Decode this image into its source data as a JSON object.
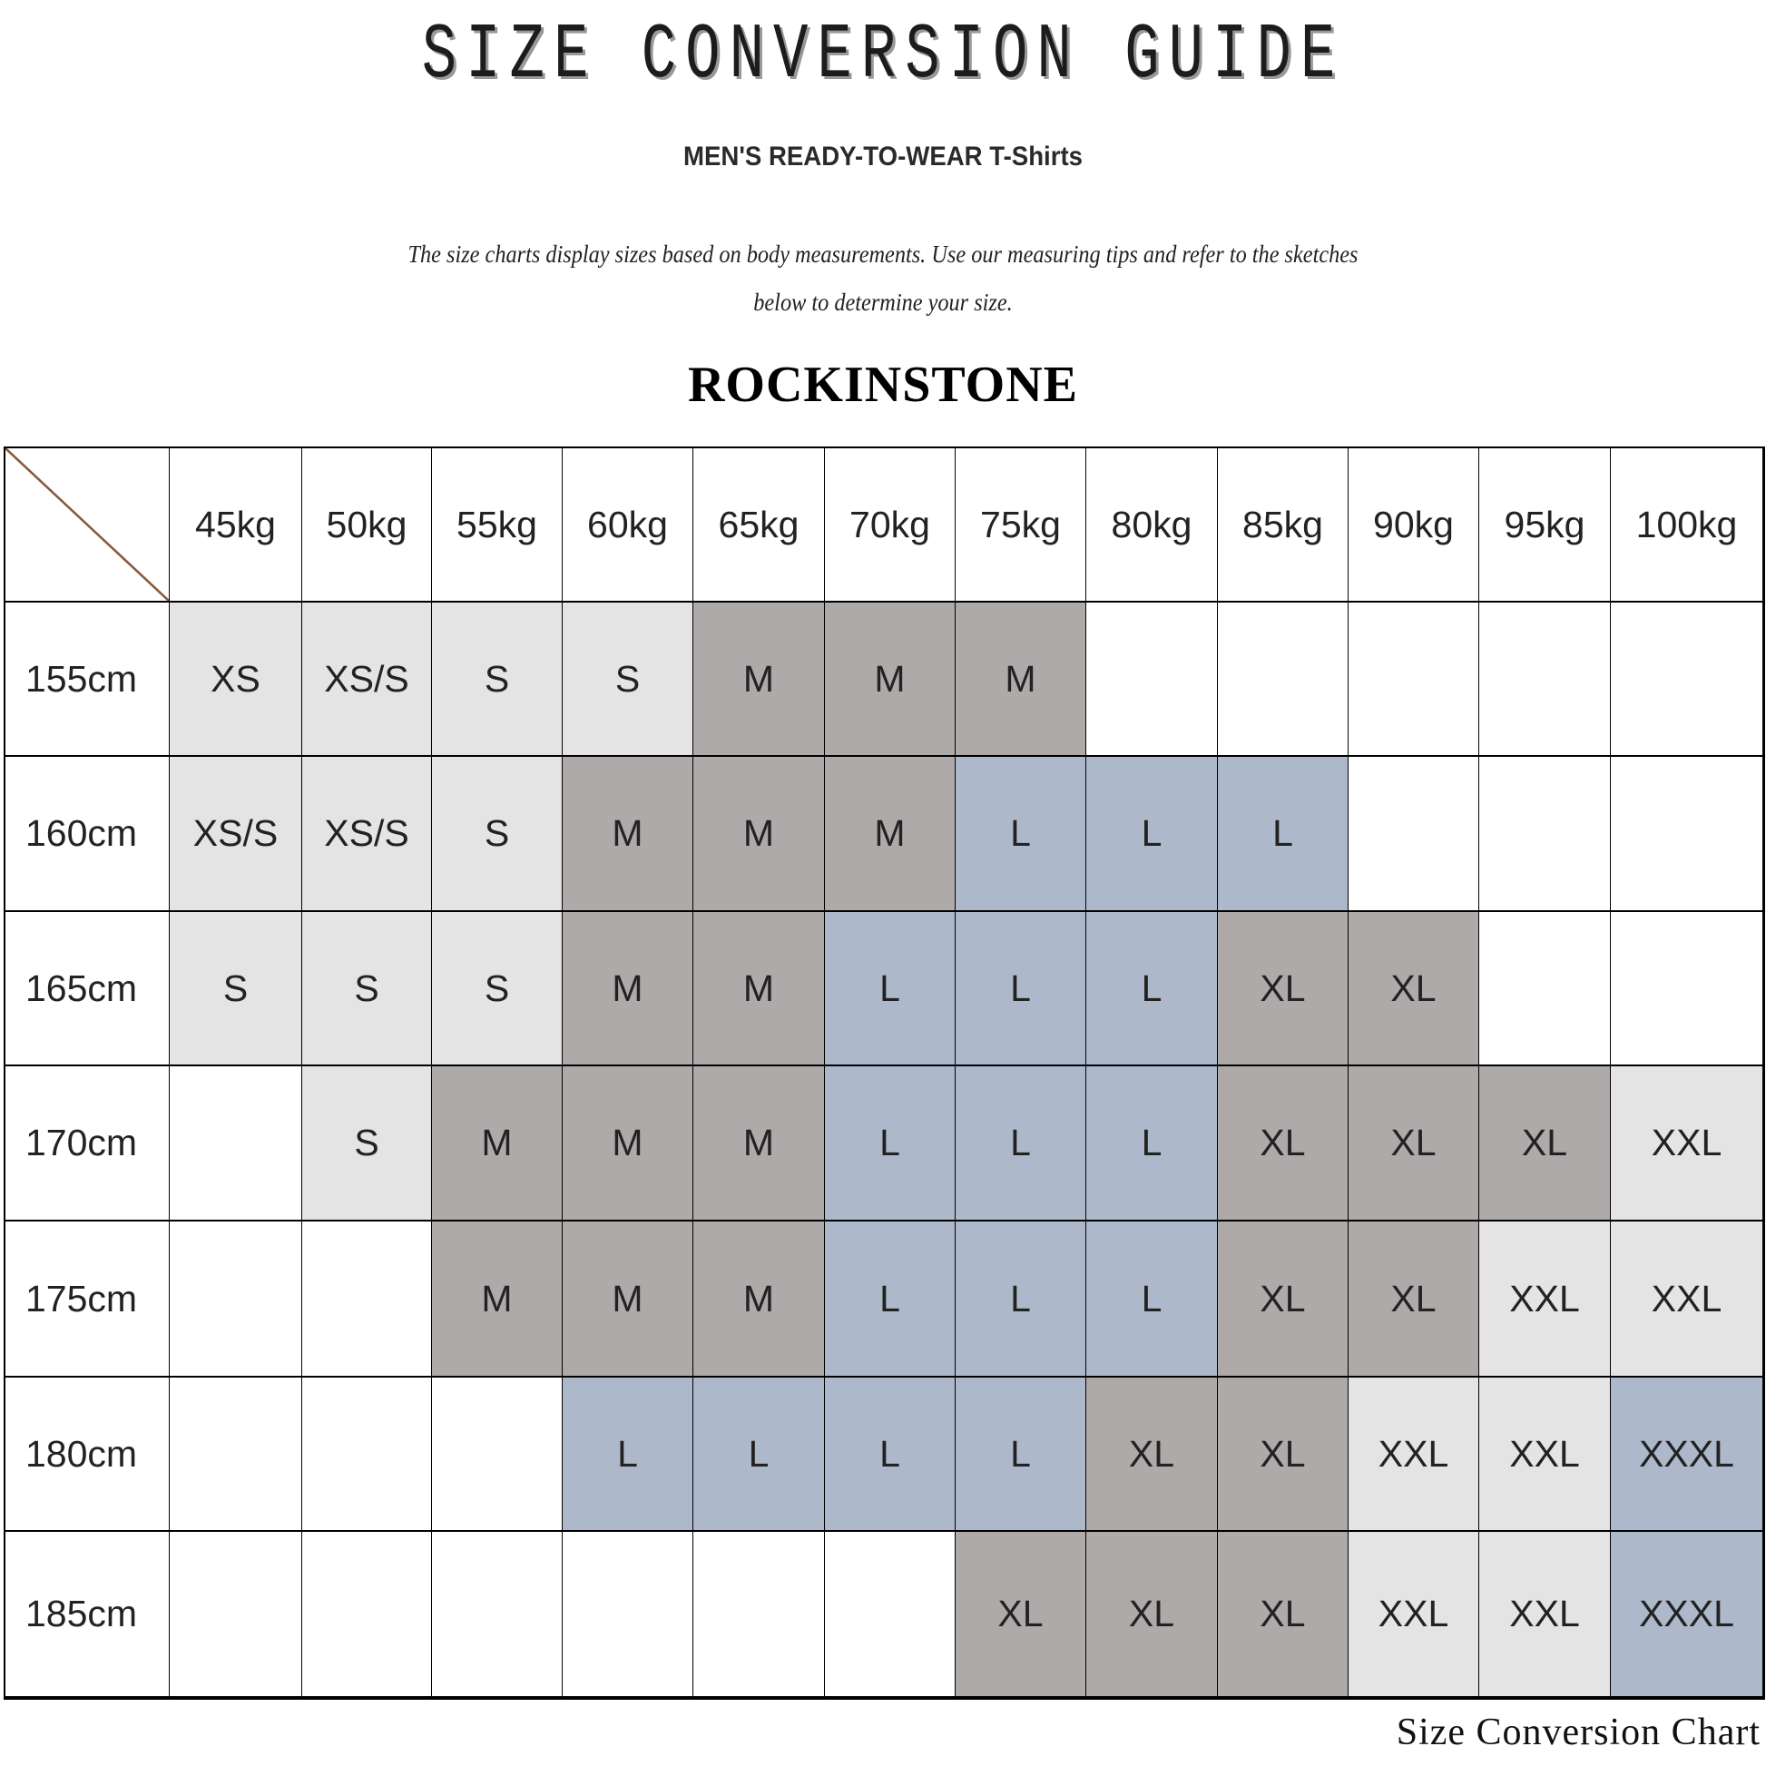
{
  "header": {
    "title": "SIZE CONVERSION GUIDE",
    "subtitle": "MEN'S READY-TO-WEAR T-Shirts",
    "description_line1": "The size charts display sizes based on body measurements. Use our measuring tips and refer to the sketches",
    "description_line2": "below to determine your size.",
    "brand": "ROCKINSTONE"
  },
  "colors": {
    "light": "#e4e4e4",
    "dark": "#aeaaa9",
    "blue": "#adb9cb",
    "empty": "#ffffff"
  },
  "size_colors": {
    "XS": "light",
    "XS/S": "light",
    "S": "light",
    "M": "dark",
    "L": "blue",
    "XL": "dark",
    "XXL": "light",
    "XXXL": "blue"
  },
  "table": {
    "columns": [
      "45kg",
      "50kg",
      "55kg",
      "60kg",
      "65kg",
      "70kg",
      "75kg",
      "80kg",
      "85kg",
      "90kg",
      "95kg",
      "100kg"
    ],
    "rows": [
      {
        "height": "155cm",
        "sizes": [
          "XS",
          "XS/S",
          "S",
          "S",
          "M",
          "M",
          "M",
          "",
          "",
          "",
          "",
          ""
        ]
      },
      {
        "height": "160cm",
        "sizes": [
          "XS/S",
          "XS/S",
          "S",
          "M",
          "M",
          "M",
          "L",
          "L",
          "L",
          "",
          "",
          ""
        ]
      },
      {
        "height": "165cm",
        "sizes": [
          "S",
          "S",
          "S",
          "M",
          "M",
          "L",
          "L",
          "L",
          "XL",
          "XL",
          "",
          ""
        ]
      },
      {
        "height": "170cm",
        "sizes": [
          "",
          "S",
          "M",
          "M",
          "M",
          "L",
          "L",
          "L",
          "XL",
          "XL",
          "XL",
          "XXL"
        ]
      },
      {
        "height": "175cm",
        "sizes": [
          "",
          "",
          "M",
          "M",
          "M",
          "L",
          "L",
          "L",
          "XL",
          "XL",
          "XXL",
          "XXL"
        ]
      },
      {
        "height": "180cm",
        "sizes": [
          "",
          "",
          "",
          "L",
          "L",
          "L",
          "L",
          "XL",
          "XL",
          "XXL",
          "XXL",
          "XXXL"
        ]
      },
      {
        "height": "185cm",
        "sizes": [
          "",
          "",
          "",
          "",
          "",
          "",
          "XL",
          "XL",
          "XL",
          "XXL",
          "XXL",
          "XXXL"
        ]
      }
    ]
  },
  "footer": "Size Conversion Chart"
}
